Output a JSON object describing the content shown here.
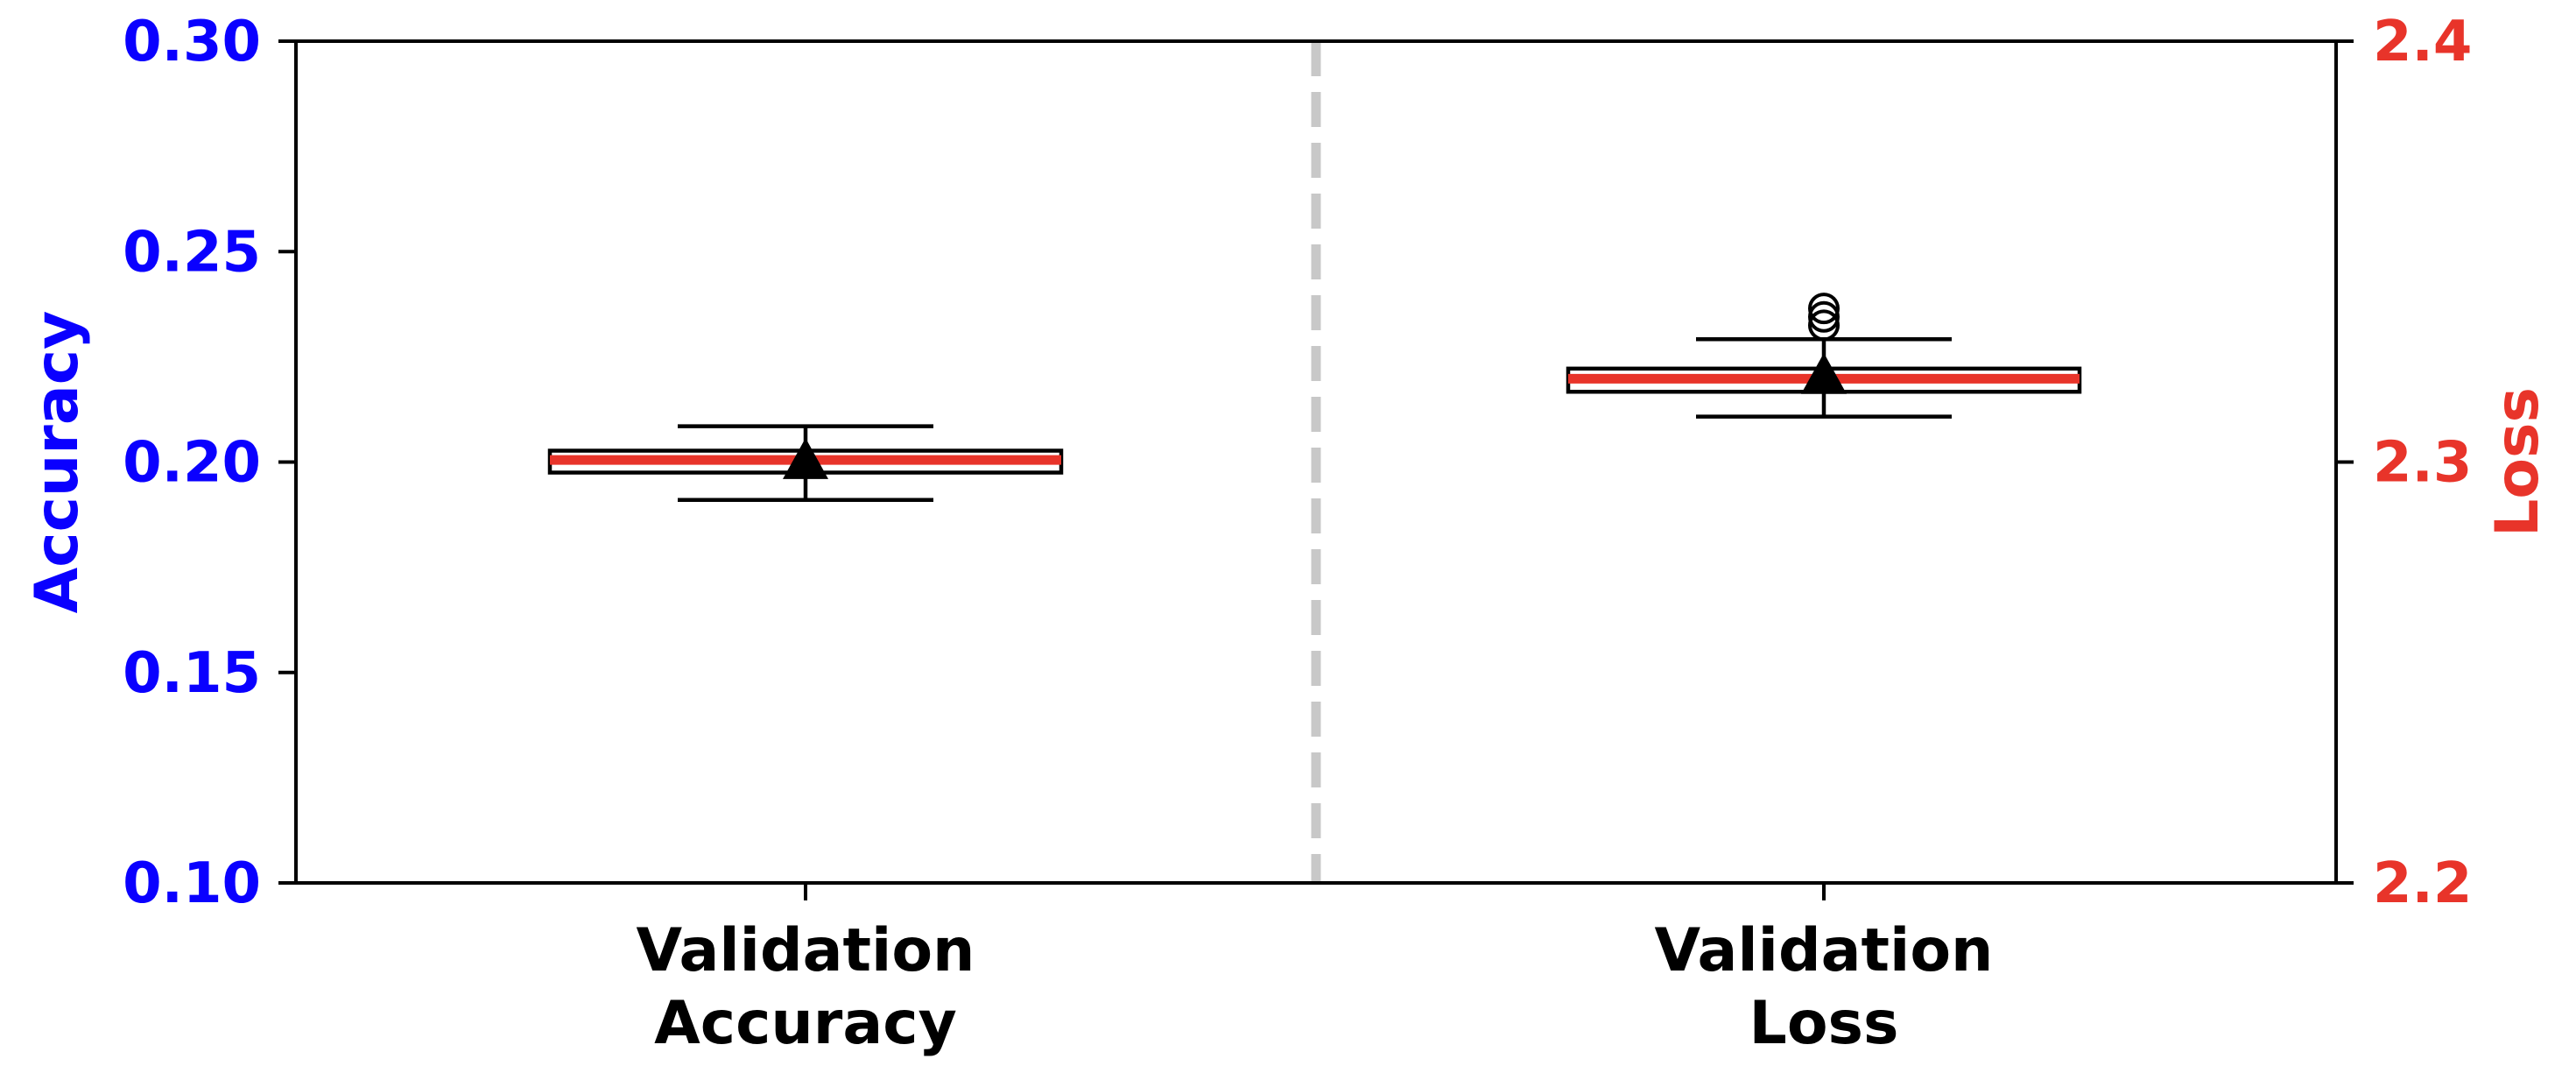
{
  "chart_data": {
    "type": "boxplot",
    "categories": [
      "Validation\nAccuracy",
      "Validation\nLoss"
    ],
    "left_axis": {
      "label": "Accuracy",
      "color": "#0a00ff",
      "ylim": [
        0.1,
        0.3
      ],
      "ticks": [
        "0.10",
        "0.15",
        "0.20",
        "0.25",
        "0.30"
      ]
    },
    "right_axis": {
      "label": "Loss",
      "color": "#e8342a",
      "ylim": [
        2.2,
        2.4
      ],
      "ticks": [
        "2.2",
        "2.3",
        "2.4"
      ]
    },
    "boxes": [
      {
        "category": "Validation\nAccuracy",
        "axis": "left",
        "whisker_low": 0.191,
        "q1": 0.1975,
        "median": 0.2005,
        "q3": 0.2027,
        "whisker_high": 0.2085,
        "mean": 0.2003,
        "outliers": []
      },
      {
        "category": "Validation\nLoss",
        "axis": "right",
        "whisker_low": 2.3108,
        "q1": 2.3167,
        "median": 2.3198,
        "q3": 2.3222,
        "whisker_high": 2.3292,
        "mean": 2.3205,
        "outliers": [
          2.3325,
          2.3345,
          2.3365
        ]
      }
    ],
    "median_color": "#e8342a",
    "divider": {
      "style": "dashed",
      "color": "#c8c8c8"
    },
    "grid": false,
    "legend": "none"
  }
}
